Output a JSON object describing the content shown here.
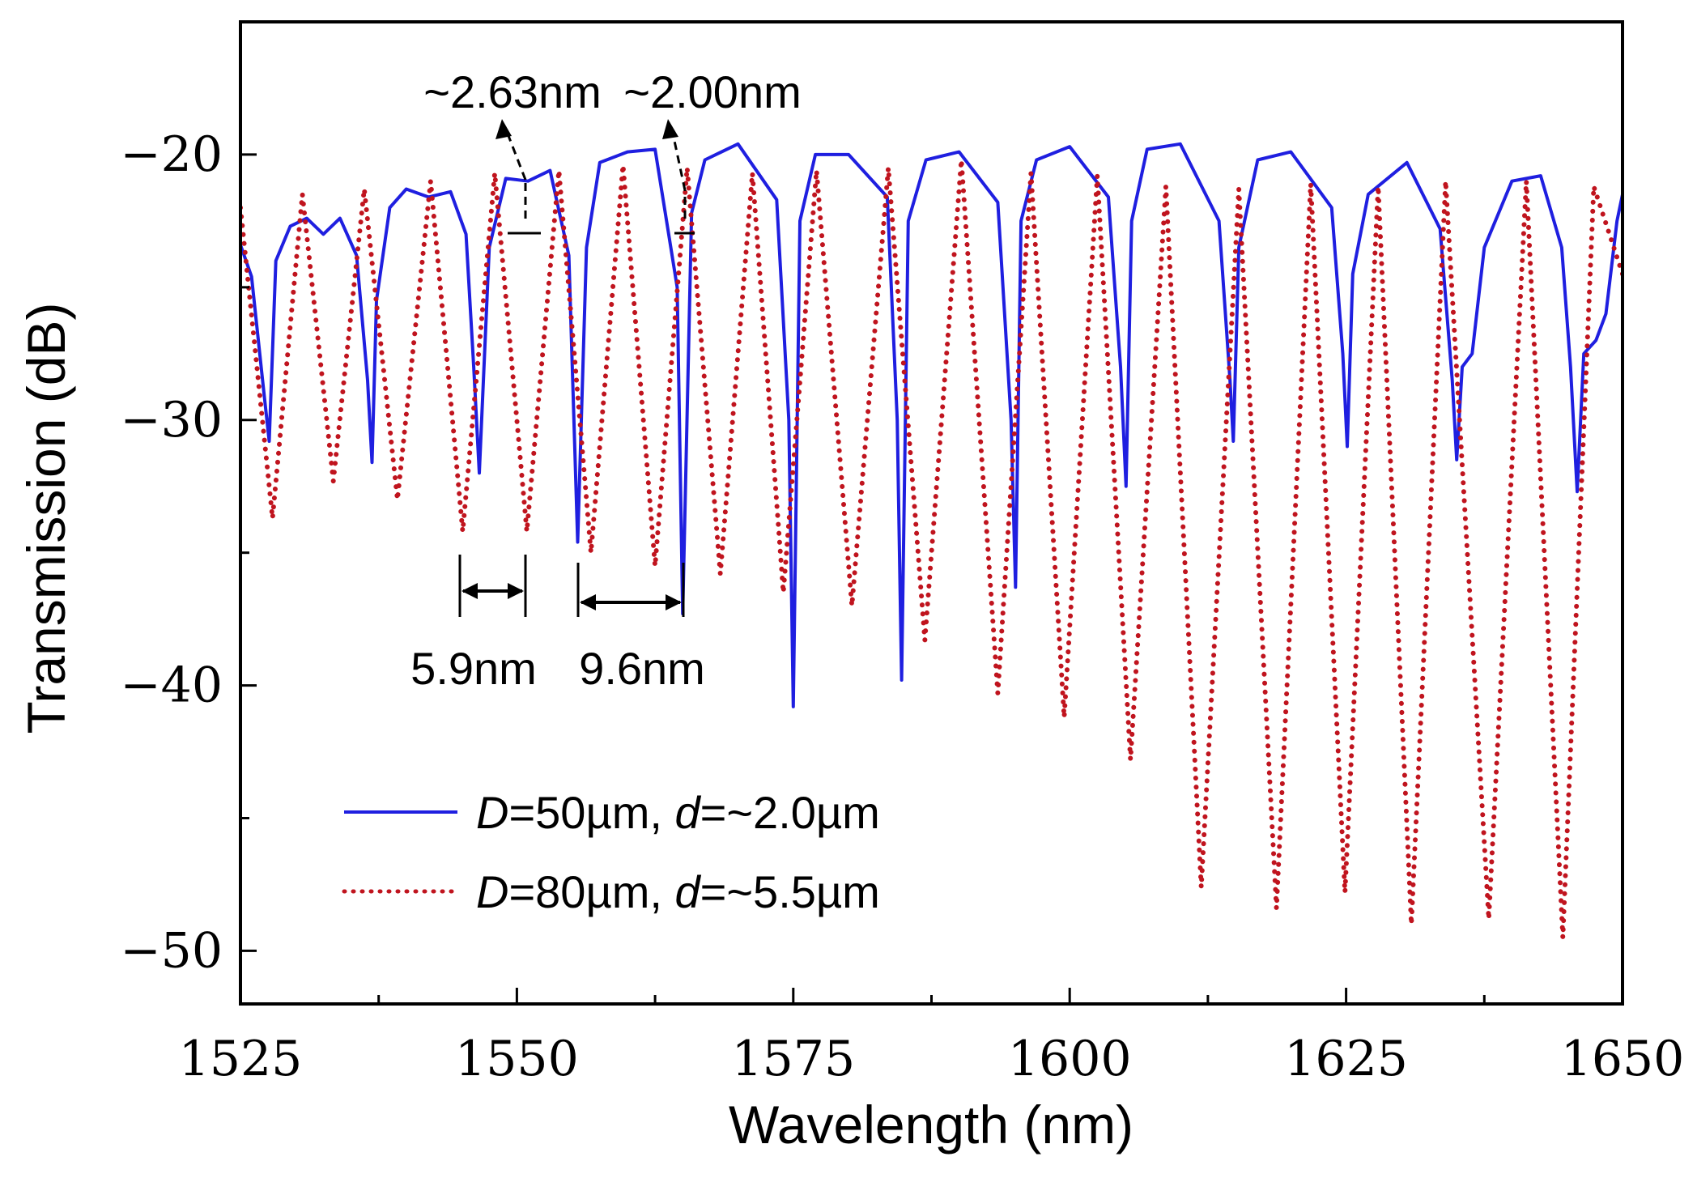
{
  "chart_data": {
    "type": "line",
    "title": "",
    "xlabel": "Wavelength (nm)",
    "ylabel": "Transmission (dB)",
    "xlim": [
      1525,
      1650
    ],
    "ylim": [
      -52,
      -15
    ],
    "x_ticks": [
      1525,
      1550,
      1575,
      1600,
      1625,
      1650
    ],
    "x_tick_labels": [
      "1525",
      "1550",
      "1575",
      "1600",
      "1625",
      "1650"
    ],
    "y_ticks": [
      -20,
      -30,
      -40,
      -50
    ],
    "y_tick_labels": [
      "−20",
      "−30",
      "−40",
      "−50"
    ],
    "grid": false,
    "legend_position": "lower-left",
    "series": [
      {
        "name": "D=50µm, d=~2.0µm",
        "name_parts": {
          "v1": "D",
          "r1": "=50µm, ",
          "v2": "d",
          "r2": "=~2.0µm"
        },
        "style": "solid",
        "color": "#1f1fe0",
        "x": [
          1525,
          1526,
          1527,
          1527.6,
          1528.2,
          1529.5,
          1531,
          1532.5,
          1534,
          1535.5,
          1536.5,
          1536.9,
          1537.3,
          1538.5,
          1540,
          1542,
          1544,
          1545.4,
          1546.1,
          1546.6,
          1547.5,
          1549,
          1551,
          1553,
          1554.7,
          1555.5,
          1556.3,
          1557.5,
          1560,
          1562.5,
          1564.5,
          1565.0,
          1565.8,
          1567,
          1570,
          1573.5,
          1574.6,
          1575.0,
          1575.6,
          1577,
          1580,
          1583.5,
          1584.4,
          1584.8,
          1585.4,
          1587,
          1590,
          1593.5,
          1594.7,
          1595.1,
          1595.6,
          1597,
          1600,
          1603.5,
          1604.6,
          1605.1,
          1605.6,
          1607,
          1610,
          1613.5,
          1614.5,
          1614.8,
          1615.3,
          1617,
          1620,
          1623.7,
          1624.7,
          1625.1,
          1625.6,
          1627,
          1630.5,
          1633.5,
          1634.6,
          1635.0,
          1635.5,
          1636.4,
          1637.5,
          1640,
          1642.6,
          1644.5,
          1645.3,
          1645.9,
          1646.5,
          1647.6,
          1648.5,
          1649.5,
          1650
        ],
        "y": [
          -23.4,
          -24.6,
          -28.5,
          -30.8,
          -24,
          -22.7,
          -22.4,
          -23,
          -22.4,
          -23.8,
          -28.5,
          -31.6,
          -25.5,
          -22,
          -21.3,
          -21.6,
          -21.4,
          -23,
          -28,
          -32,
          -23.5,
          -20.9,
          -21,
          -20.6,
          -23.8,
          -34.6,
          -23.5,
          -20.3,
          -19.9,
          -19.8,
          -25,
          -37.3,
          -22.2,
          -20.2,
          -19.6,
          -21.7,
          -30,
          -40.8,
          -22.5,
          -20,
          -20,
          -21.6,
          -30,
          -39.8,
          -22.5,
          -20.2,
          -19.9,
          -21.8,
          -30,
          -36.3,
          -22.5,
          -20.2,
          -19.7,
          -21.6,
          -28,
          -32.5,
          -22.5,
          -19.8,
          -19.6,
          -22.5,
          -28.5,
          -30.8,
          -23.5,
          -20.2,
          -19.9,
          -22,
          -27.5,
          -31,
          -24.5,
          -21.5,
          -20.3,
          -22.8,
          -28.5,
          -31.5,
          -28,
          -27.5,
          -23.5,
          -21,
          -20.8,
          -23.5,
          -28,
          -32.7,
          -27.5,
          -27,
          -26,
          -22.5,
          -21.5
        ]
      },
      {
        "name": "D=80µm, d=~5.5µm",
        "name_parts": {
          "v1": "D",
          "r1": "=80µm, ",
          "v2": "d",
          "r2": "=~5.5µm"
        },
        "style": "dotted",
        "color": "#c0141e",
        "period_nm": 5.9,
        "first_minimum_nm": 1527.9,
        "x": [
          1525,
          1527.9,
          1530.6,
          1533.4,
          1536.2,
          1539.2,
          1542.2,
          1545.1,
          1548.0,
          1550.9,
          1553.8,
          1556.7,
          1559.6,
          1562.5,
          1565.4,
          1568.4,
          1571.3,
          1574.1,
          1577.1,
          1580.3,
          1583.6,
          1586.9,
          1590.2,
          1593.5,
          1596.5,
          1599.5,
          1602.5,
          1605.5,
          1608.7,
          1611.9,
          1615.3,
          1618.7,
          1621.8,
          1624.9,
          1627.9,
          1630.9,
          1634.0,
          1637.9,
          1641.3,
          1644.6,
          1647.4,
          1650
        ],
        "y": [
          -22,
          -33.7,
          -21.5,
          -32.3,
          -21.3,
          -33,
          -21,
          -34.2,
          -20.7,
          -34.2,
          -20.6,
          -35,
          -20.4,
          -35.5,
          -20.5,
          -35.8,
          -20.7,
          -36.5,
          -20.6,
          -37,
          -20.5,
          -38.3,
          -20.2,
          -40.3,
          -20.7,
          -41.2,
          -20.8,
          -42.8,
          -21.2,
          -47.6,
          -21.3,
          -48.4,
          -21.1,
          -47.8,
          -21.2,
          -49,
          -21,
          -48.8,
          -21,
          -49.5,
          -21.2,
          -24.5
        ]
      }
    ],
    "annotations": {
      "fsr_small": "5.9nm",
      "fsr_large": "9.6nm",
      "dip_depth_a": "~2.63nm",
      "dip_depth_b": "~2.00nm"
    }
  }
}
